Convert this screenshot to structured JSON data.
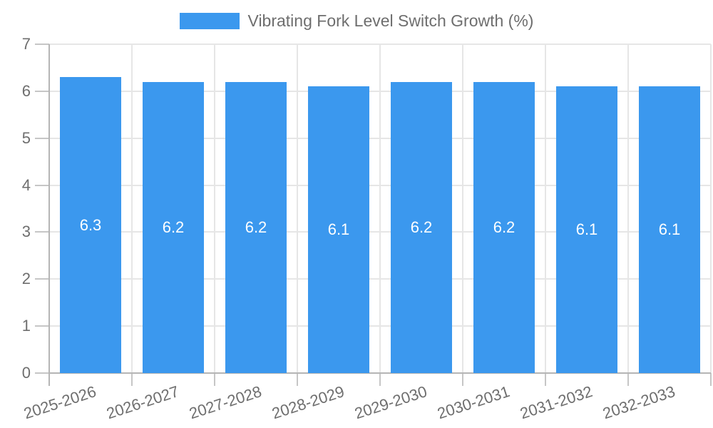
{
  "legend": {
    "label": "Vibrating Fork Level Switch Growth (%)"
  },
  "chart_data": {
    "type": "bar",
    "title": "Vibrating Fork Level Switch Growth (%)",
    "categories": [
      "2025-2026",
      "2026-2027",
      "2027-2028",
      "2028-2029",
      "2029-2030",
      "2030-2031",
      "2031-2032",
      "2032-2033"
    ],
    "values": [
      6.3,
      6.2,
      6.2,
      6.1,
      6.2,
      6.2,
      6.1,
      6.1
    ],
    "bar_labels": [
      "6.3",
      "6.2",
      "6.2",
      "6.1",
      "6.2",
      "6.2",
      "6.1",
      "6.1"
    ],
    "xlabel": "",
    "ylabel": "",
    "ylim": [
      0,
      7
    ],
    "yticks": [
      0,
      1,
      2,
      3,
      4,
      5,
      6,
      7
    ],
    "grid": true,
    "legend_position": "top-center",
    "colors": {
      "bar": "#3b98ee",
      "grid": "#e6e6e6",
      "axis": "#b5b5b5",
      "tick": "#c6c6c6",
      "tick_label": "#6e6e6e",
      "bar_label": "#ffffff"
    }
  }
}
